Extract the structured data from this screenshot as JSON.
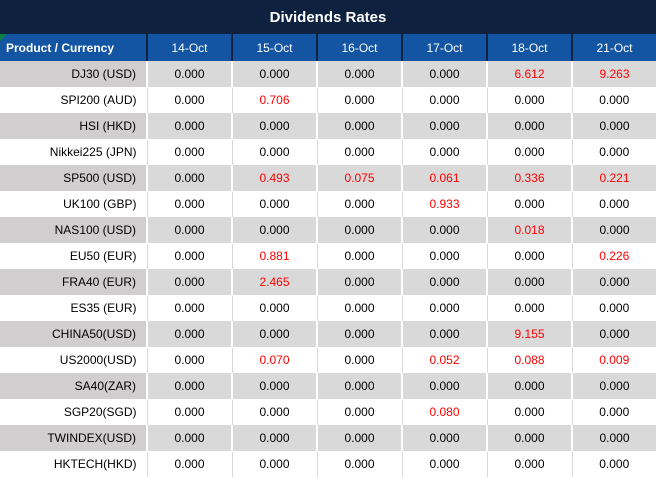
{
  "page": {
    "title": "Dividends Rates"
  },
  "colors": {
    "title_bg": "#0E2240",
    "header_bg": "#1455A3",
    "header_border": "#0E2240",
    "row_gray": "#D9D9D9",
    "label_gray": "#D0CECE",
    "value_red": "#FF0000",
    "corner_triangle_green": "#0B8043"
  },
  "table": {
    "product_header": "Product / Currency",
    "date_headers": [
      "14-Oct",
      "15-Oct",
      "16-Oct",
      "17-Oct",
      "18-Oct",
      "21-Oct"
    ],
    "rows": [
      {
        "label": "DJ30 (USD)",
        "values": [
          "0.000",
          "0.000",
          "0.000",
          "0.000",
          "6.612",
          "9.263"
        ],
        "red": [
          false,
          false,
          false,
          false,
          true,
          true
        ]
      },
      {
        "label": "SPI200 (AUD)",
        "values": [
          "0.000",
          "0.706",
          "0.000",
          "0.000",
          "0.000",
          "0.000"
        ],
        "red": [
          false,
          true,
          false,
          false,
          false,
          false
        ]
      },
      {
        "label": "HSI (HKD)",
        "values": [
          "0.000",
          "0.000",
          "0.000",
          "0.000",
          "0.000",
          "0.000"
        ],
        "red": [
          false,
          false,
          false,
          false,
          false,
          false
        ]
      },
      {
        "label": "Nikkei225 (JPN)",
        "values": [
          "0.000",
          "0.000",
          "0.000",
          "0.000",
          "0.000",
          "0.000"
        ],
        "red": [
          false,
          false,
          false,
          false,
          false,
          false
        ]
      },
      {
        "label": "SP500 (USD)",
        "values": [
          "0.000",
          "0.493",
          "0.075",
          "0.061",
          "0.336",
          "0.221"
        ],
        "red": [
          false,
          true,
          true,
          true,
          true,
          true
        ]
      },
      {
        "label": "UK100 (GBP)",
        "values": [
          "0.000",
          "0.000",
          "0.000",
          "0.933",
          "0.000",
          "0.000"
        ],
        "red": [
          false,
          false,
          false,
          true,
          false,
          false
        ]
      },
      {
        "label": "NAS100 (USD)",
        "values": [
          "0.000",
          "0.000",
          "0.000",
          "0.000",
          "0.018",
          "0.000"
        ],
        "red": [
          false,
          false,
          false,
          false,
          true,
          false
        ]
      },
      {
        "label": "EU50 (EUR)",
        "values": [
          "0.000",
          "0.881",
          "0.000",
          "0.000",
          "0.000",
          "0.226"
        ],
        "red": [
          false,
          true,
          false,
          false,
          false,
          true
        ]
      },
      {
        "label": "FRA40 (EUR)",
        "values": [
          "0.000",
          "2.465",
          "0.000",
          "0.000",
          "0.000",
          "0.000"
        ],
        "red": [
          false,
          true,
          false,
          false,
          false,
          false
        ]
      },
      {
        "label": "ES35 (EUR)",
        "values": [
          "0.000",
          "0.000",
          "0.000",
          "0.000",
          "0.000",
          "0.000"
        ],
        "red": [
          false,
          false,
          false,
          false,
          false,
          false
        ]
      },
      {
        "label": "CHINA50(USD)",
        "values": [
          "0.000",
          "0.000",
          "0.000",
          "0.000",
          "9.155",
          "0.000"
        ],
        "red": [
          false,
          false,
          false,
          false,
          true,
          false
        ]
      },
      {
        "label": "US2000(USD)",
        "values": [
          "0.000",
          "0.070",
          "0.000",
          "0.052",
          "0.088",
          "0.009"
        ],
        "red": [
          false,
          true,
          false,
          true,
          true,
          true
        ]
      },
      {
        "label": "SA40(ZAR)",
        "values": [
          "0.000",
          "0.000",
          "0.000",
          "0.000",
          "0.000",
          "0.000"
        ],
        "red": [
          false,
          false,
          false,
          false,
          false,
          false
        ]
      },
      {
        "label": "SGP20(SGD)",
        "values": [
          "0.000",
          "0.000",
          "0.000",
          "0.080",
          "0.000",
          "0.000"
        ],
        "red": [
          false,
          false,
          false,
          true,
          false,
          false
        ]
      },
      {
        "label": "TWINDEX(USD)",
        "values": [
          "0.000",
          "0.000",
          "0.000",
          "0.000",
          "0.000",
          "0.000"
        ],
        "red": [
          false,
          false,
          false,
          false,
          false,
          false
        ]
      },
      {
        "label": "HKTECH(HKD)",
        "values": [
          "0.000",
          "0.000",
          "0.000",
          "0.000",
          "0.000",
          "0.000"
        ],
        "red": [
          false,
          false,
          false,
          false,
          false,
          false
        ]
      }
    ]
  }
}
